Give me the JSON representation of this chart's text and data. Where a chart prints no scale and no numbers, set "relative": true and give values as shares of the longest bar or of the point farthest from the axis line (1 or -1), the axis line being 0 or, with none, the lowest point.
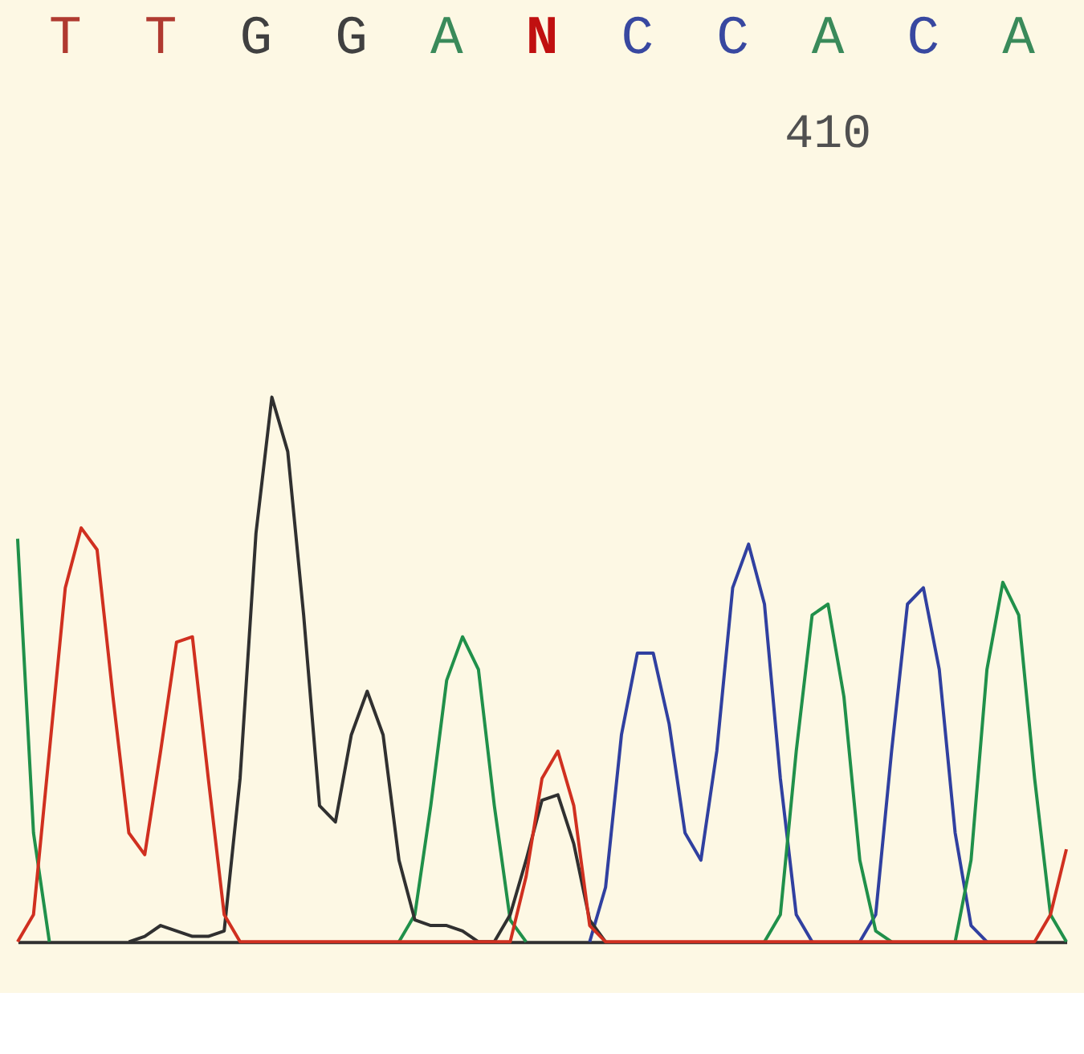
{
  "chart_data": {
    "type": "line",
    "relative": true,
    "legend": false,
    "grid": false,
    "marker": "none",
    "line_style": "solid",
    "annotations": [
      "T",
      "T",
      "G",
      "G",
      "A",
      "N",
      "C",
      "C",
      "A",
      "C",
      "A",
      "410"
    ],
    "categories": [
      null,
      null,
      null,
      null,
      null,
      null,
      null,
      null,
      null,
      null,
      null,
      null,
      null,
      null,
      null,
      null,
      null,
      null,
      null,
      null,
      null,
      null,
      null,
      null,
      null,
      null,
      null,
      null,
      null,
      null,
      null,
      null,
      null,
      null,
      null,
      null,
      null,
      null,
      null,
      null,
      null,
      null,
      null,
      null,
      null,
      null,
      null,
      null,
      null,
      null,
      null,
      null,
      null,
      null,
      null,
      null,
      null,
      null,
      null,
      null,
      null,
      null,
      null,
      null,
      null,
      null,
      null
    ],
    "series": [
      {
        "color": "#d03020",
        "values": [
          0,
          0.05,
          0.35,
          0.65,
          0.76,
          0.72,
          0.45,
          0.2,
          0.16,
          0.35,
          0.55,
          0.56,
          0.3,
          0.05,
          0,
          0,
          0,
          0,
          0,
          0,
          0,
          0,
          0,
          0,
          0,
          0,
          0,
          0,
          0,
          0,
          0,
          0,
          0.12,
          0.3,
          0.35,
          0.25,
          0.03,
          0,
          0,
          0,
          0,
          0,
          0,
          0,
          0,
          0,
          0,
          0,
          0,
          0,
          0,
          0,
          0,
          0,
          0,
          0,
          0,
          0,
          0,
          0,
          0,
          0,
          0,
          0,
          0,
          0.05,
          0.17
        ]
      },
      {
        "color": "#303030",
        "values": [
          null,
          null,
          null,
          null,
          null,
          null,
          null,
          0,
          0.01,
          0.03,
          0.02,
          0.01,
          0.01,
          0.02,
          0.3,
          0.75,
          1,
          0.9,
          0.6,
          0.25,
          0.22,
          0.38,
          0.46,
          0.38,
          0.15,
          0.04,
          0.03,
          0.03,
          0.02,
          0,
          0,
          0.05,
          0.15,
          0.26,
          0.27,
          0.18,
          0.04,
          0,
          null,
          null,
          null,
          null,
          null,
          null,
          null,
          null,
          null,
          null,
          null,
          null,
          null,
          null,
          null,
          null,
          null,
          null,
          null,
          null,
          null,
          null,
          null,
          null,
          null,
          null,
          null,
          null,
          null
        ]
      },
      {
        "color": "#20904a",
        "values": [
          0.74,
          0.2,
          0,
          null,
          null,
          null,
          null,
          null,
          null,
          null,
          null,
          null,
          null,
          null,
          null,
          null,
          null,
          null,
          null,
          null,
          null,
          null,
          null,
          null,
          0,
          0.05,
          0.25,
          0.48,
          0.56,
          0.5,
          0.25,
          0.04,
          0,
          null,
          null,
          null,
          null,
          null,
          null,
          null,
          null,
          null,
          null,
          null,
          null,
          null,
          null,
          0,
          0.05,
          0.35,
          0.6,
          0.62,
          0.45,
          0.15,
          0.02,
          0,
          null,
          null,
          null,
          0,
          0.15,
          0.5,
          0.66,
          0.6,
          0.3,
          0.05,
          0
        ]
      },
      {
        "color": "#3040a0",
        "values": [
          null,
          null,
          null,
          null,
          null,
          null,
          null,
          null,
          null,
          null,
          null,
          null,
          null,
          null,
          null,
          null,
          null,
          null,
          null,
          null,
          null,
          null,
          null,
          null,
          null,
          null,
          null,
          null,
          null,
          null,
          null,
          null,
          null,
          null,
          null,
          null,
          0,
          0.1,
          0.38,
          0.53,
          0.53,
          0.4,
          0.2,
          0.15,
          0.35,
          0.65,
          0.73,
          0.62,
          0.3,
          0.05,
          0,
          null,
          null,
          0,
          0.05,
          0.35,
          0.62,
          0.65,
          0.5,
          0.2,
          0.03,
          0,
          null,
          null,
          null,
          null,
          null
        ]
      }
    ]
  }
}
